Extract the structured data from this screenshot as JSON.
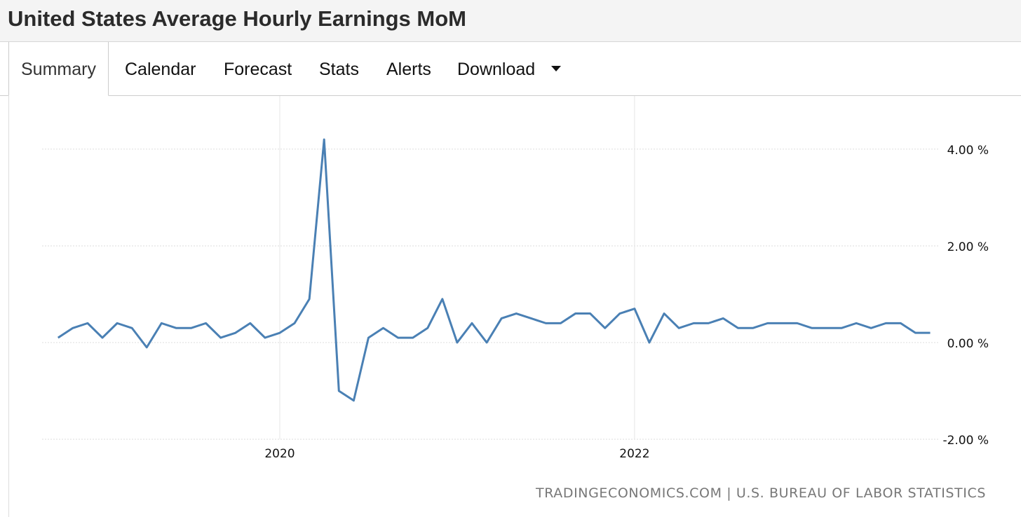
{
  "header": {
    "title": "United States Average Hourly Earnings MoM"
  },
  "tabs": [
    "Summary",
    "Calendar",
    "Forecast",
    "Stats",
    "Alerts",
    "Download"
  ],
  "chart_data": {
    "type": "line",
    "x": [
      2018.75,
      2018.8333,
      2018.9167,
      2019,
      2019.0833,
      2019.1667,
      2019.25,
      2019.3333,
      2019.4167,
      2019.5,
      2019.5833,
      2019.6667,
      2019.75,
      2019.8333,
      2019.9167,
      2020,
      2020.0833,
      2020.1667,
      2020.25,
      2020.3333,
      2020.4167,
      2020.5,
      2020.5833,
      2020.6667,
      2020.75,
      2020.8333,
      2020.9167,
      2021,
      2021.0833,
      2021.1667,
      2021.25,
      2021.3333,
      2021.4167,
      2021.5,
      2021.5833,
      2021.6667,
      2021.75,
      2021.8333,
      2021.9167,
      2022,
      2022.0833,
      2022.1667,
      2022.25,
      2022.3333,
      2022.4167,
      2022.5,
      2022.5833,
      2022.6667,
      2022.75,
      2022.8333,
      2022.9167,
      2023,
      2023.0833,
      2023.1667,
      2023.25,
      2023.3333,
      2023.4167,
      2023.5,
      2023.5833,
      2023.6667
    ],
    "series": [
      {
        "color": "#4a80b4",
        "values": [
          0.1,
          0.3,
          0.4,
          0.1,
          0.4,
          0.3,
          -0.1,
          0.4,
          0.3,
          0.3,
          0.4,
          0.1,
          0.2,
          0.4,
          0.1,
          0.2,
          0.4,
          0.9,
          4.2,
          -1.0,
          -1.2,
          0.1,
          0.3,
          0.1,
          0.1,
          0.3,
          0.9,
          0.0,
          0.4,
          0.0,
          0.5,
          0.6,
          0.5,
          0.4,
          0.4,
          0.6,
          0.6,
          0.3,
          0.6,
          0.7,
          0.0,
          0.6,
          0.3,
          0.4,
          0.4,
          0.5,
          0.3,
          0.3,
          0.4,
          0.4,
          0.4,
          0.3,
          0.3,
          0.3,
          0.4,
          0.3,
          0.4,
          0.4,
          0.2,
          0.2
        ]
      }
    ],
    "xlim": [
      2018.66,
      2023.72
    ],
    "xticks": [
      2020,
      2022
    ],
    "ylim": [
      -2,
      5.1
    ],
    "yticks": [
      {
        "value": -2,
        "label": "-2.00 %"
      },
      {
        "value": 0,
        "label": "0.00 %"
      },
      {
        "value": 2,
        "label": "2.00 %"
      },
      {
        "value": 4,
        "label": "4.00 %"
      }
    ],
    "grid": true,
    "source": "TRADINGECONOMICS.COM | U.S. BUREAU OF LABOR STATISTICS"
  }
}
